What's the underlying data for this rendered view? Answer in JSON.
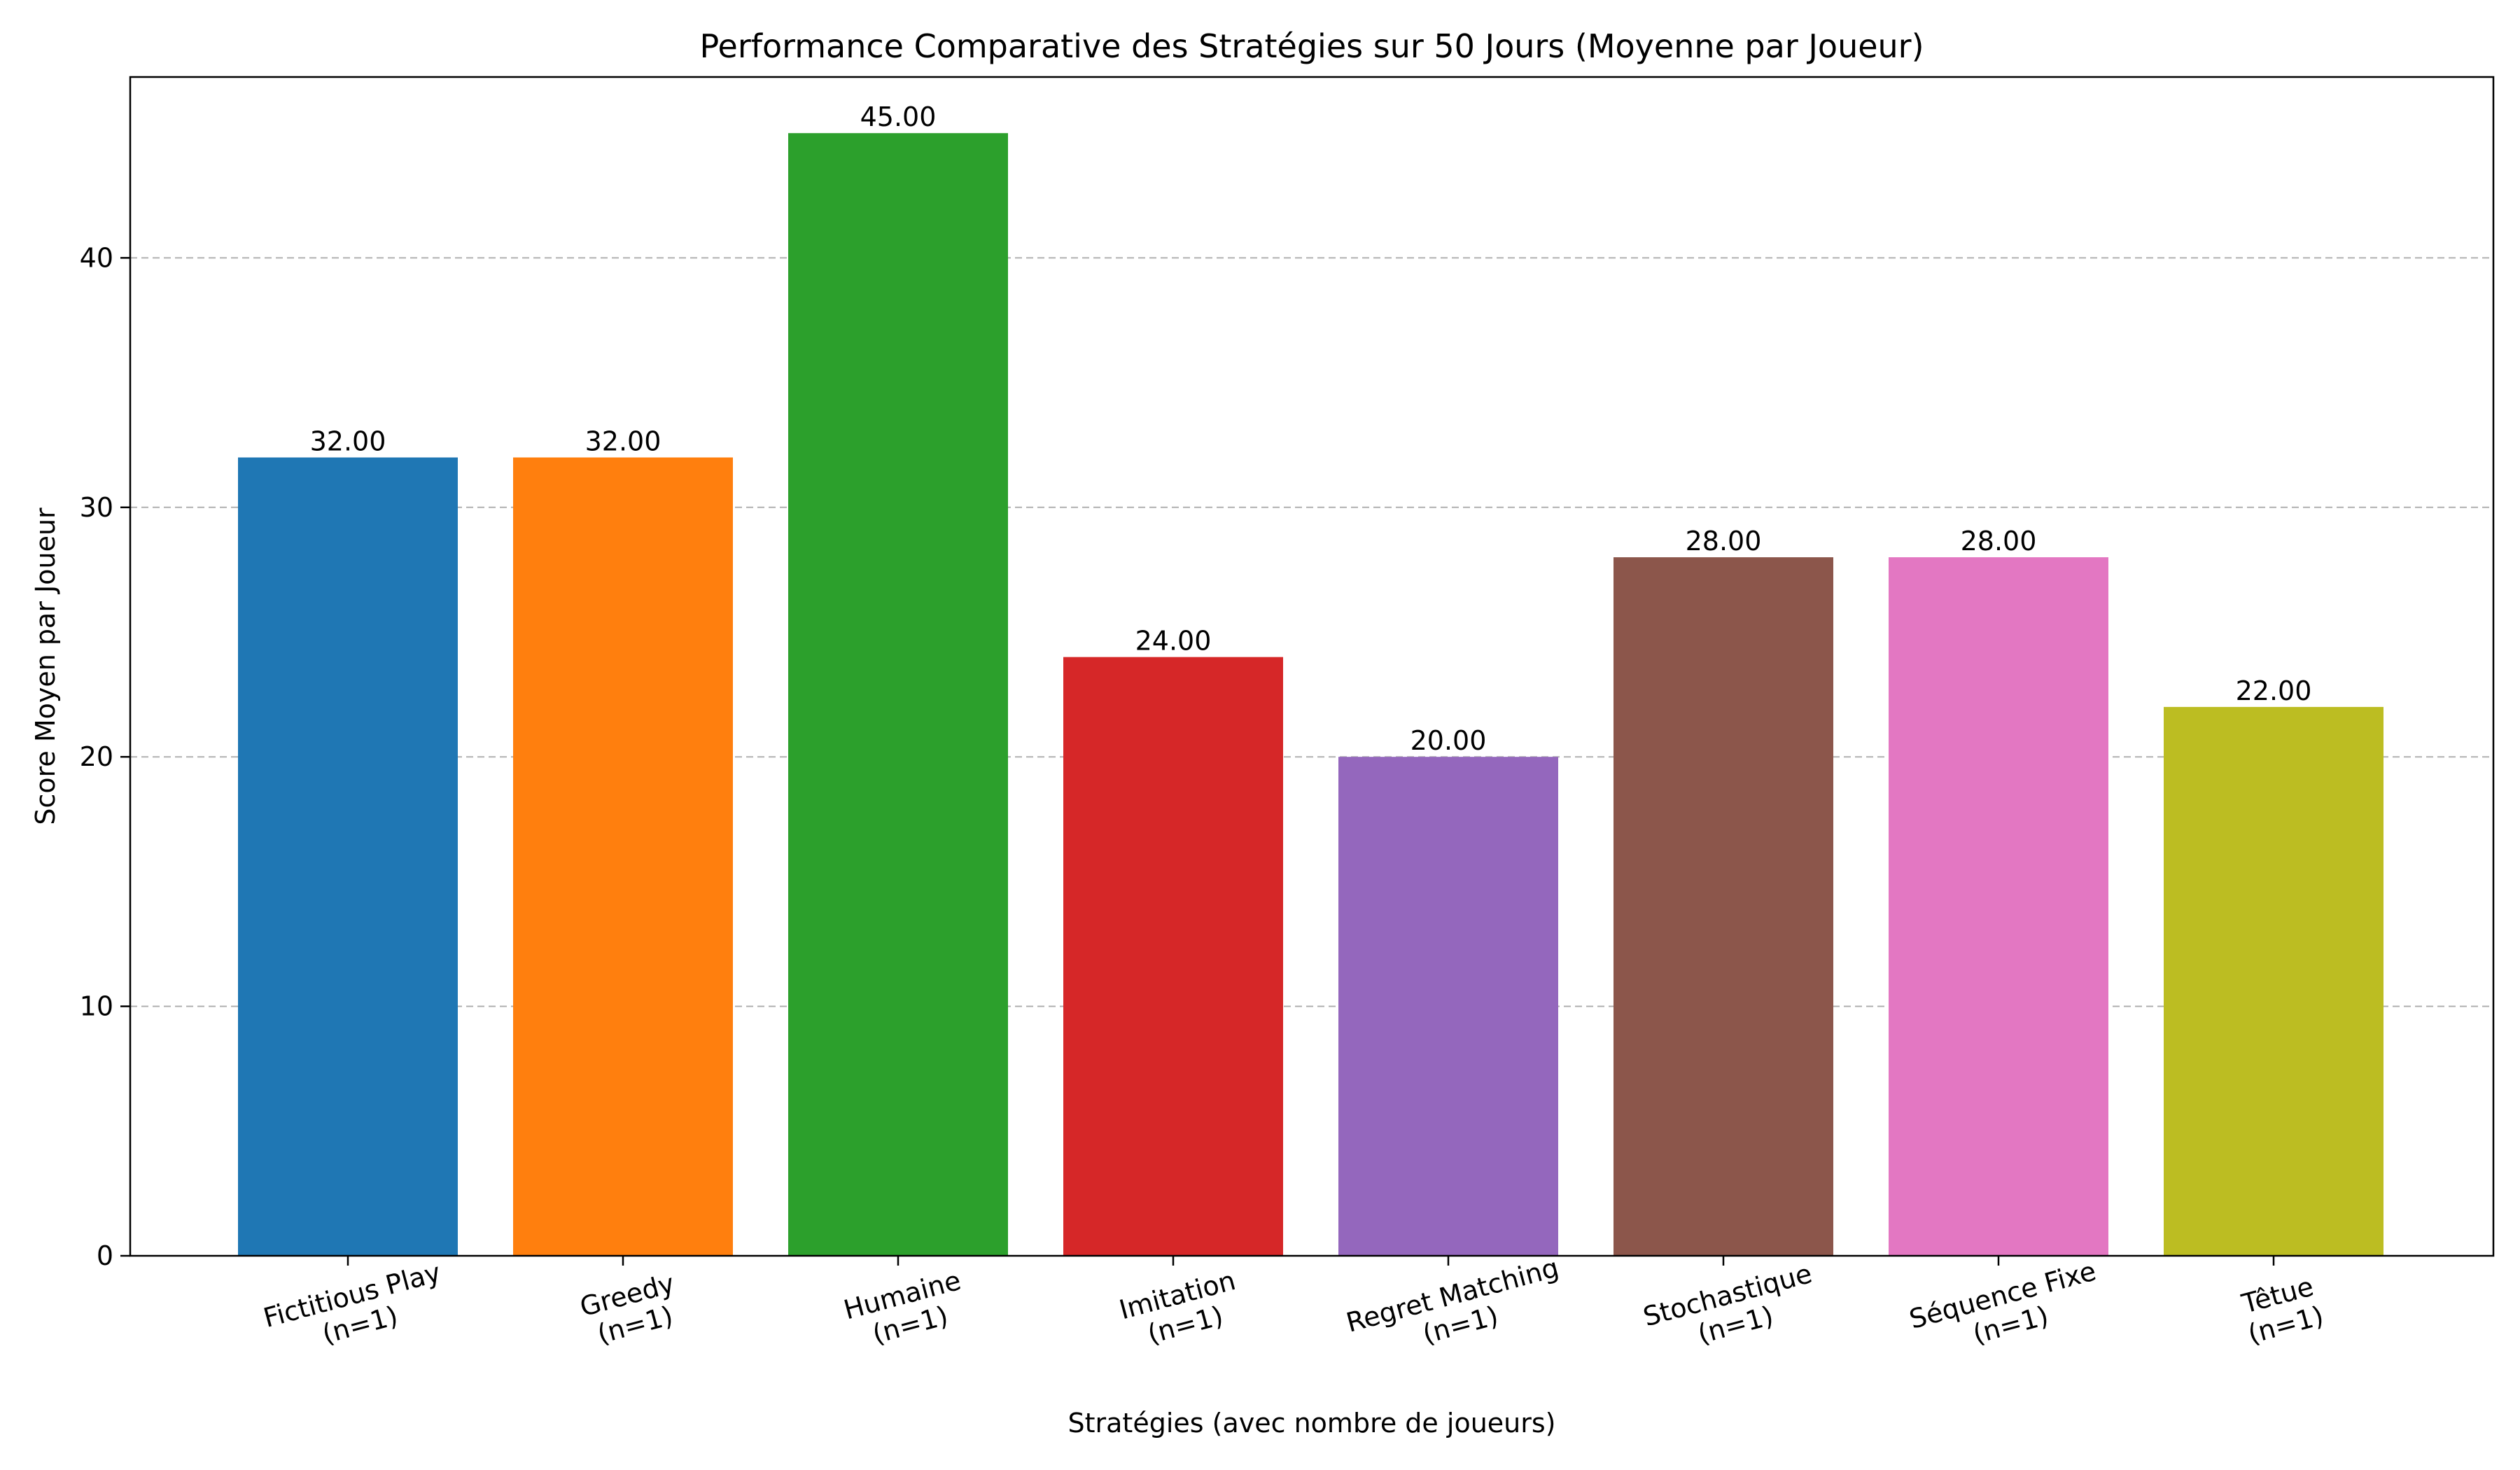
{
  "chart_data": {
    "type": "bar",
    "title": "Performance Comparative des Stratégies sur 50 Jours (Moyenne par Joueur)",
    "xlabel": "Stratégies (avec nombre de joueurs)",
    "ylabel": "Score Moyen par Joueur",
    "ylim": [
      0,
      47.25
    ],
    "yticks": [
      0,
      10,
      20,
      30,
      40
    ],
    "grid": "y-dashed",
    "categories": [
      [
        "Fictitious Play",
        "(n=1)"
      ],
      [
        "Greedy",
        "(n=1)"
      ],
      [
        "Humaine",
        "(n=1)"
      ],
      [
        "Imitation",
        "(n=1)"
      ],
      [
        "Regret Matching",
        "(n=1)"
      ],
      [
        "Stochastique",
        "(n=1)"
      ],
      [
        "Séquence Fixe",
        "(n=1)"
      ],
      [
        "Têtue",
        "(n=1)"
      ]
    ],
    "values": [
      32,
      32,
      45,
      24,
      20,
      28,
      28,
      22
    ],
    "value_labels": [
      "32.00",
      "32.00",
      "45.00",
      "24.00",
      "20.00",
      "28.00",
      "28.00",
      "22.00"
    ],
    "colors": [
      "#1f77b4",
      "#ff7f0e",
      "#2ca02c",
      "#d62728",
      "#9467bd",
      "#8c564b",
      "#e377c2",
      "#bcbd22"
    ]
  }
}
